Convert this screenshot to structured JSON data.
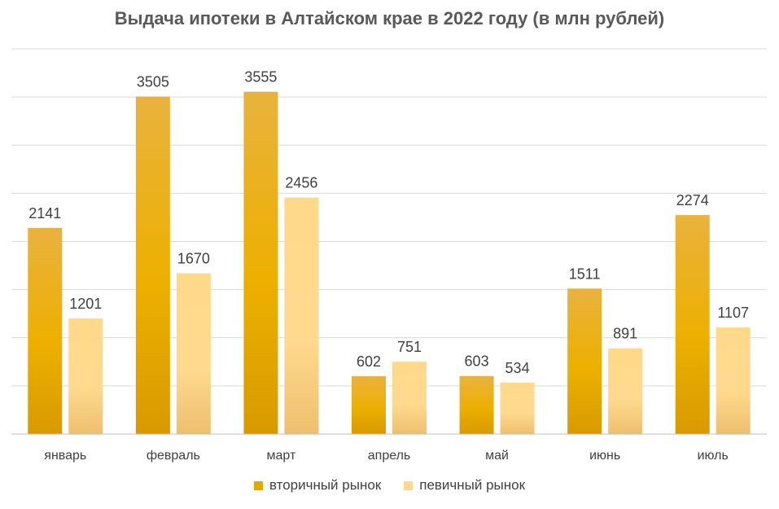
{
  "chart_data": {
    "type": "bar",
    "title": "Выдача ипотеки в Алтайском крае в 2022 году (в млн рублей)",
    "categories": [
      "январь",
      "февраль",
      "март",
      "апрель",
      "май",
      "июнь",
      "июль"
    ],
    "series": [
      {
        "name": "вторичный рынок",
        "values": [
          2141,
          3505,
          3555,
          602,
          603,
          1511,
          2274
        ],
        "color": "#E6A800"
      },
      {
        "name": "певичный рынок",
        "values": [
          1201,
          1670,
          2456,
          751,
          534,
          891,
          1107
        ],
        "color": "#FFD98A"
      }
    ],
    "ylim": [
      0,
      4000
    ],
    "grid": true,
    "legend_position": "bottom"
  }
}
